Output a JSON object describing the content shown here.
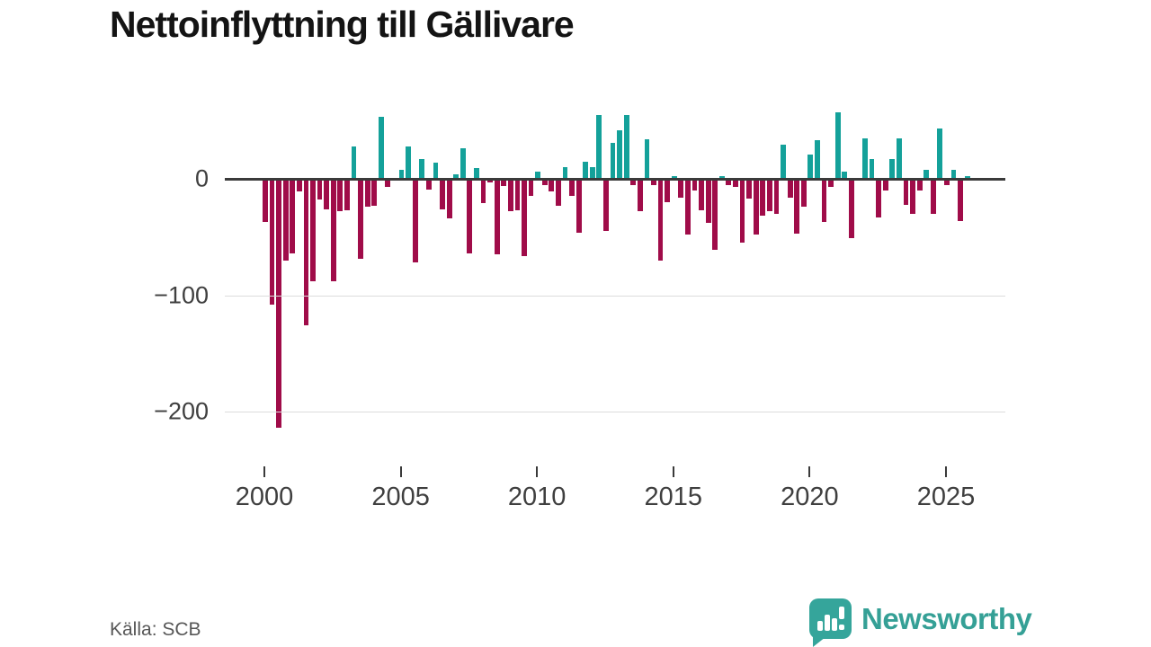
{
  "title": "Nettoinflyttning till Gällivare",
  "source": "Källa: SCB",
  "branding": {
    "logo_text": "Newsworthy"
  },
  "chart_data": {
    "type": "bar",
    "title": "Nettoinflyttning till Gällivare",
    "xlabel": "",
    "ylabel": "",
    "frequency": "quarterly",
    "period_start": "2000 Q1",
    "period_end": "2025 Q4",
    "grid": "horizontal",
    "legend": "none",
    "ylim": [
      -235,
      75
    ],
    "colors": {
      "positive": "#14a19a",
      "negative": "#a00c49"
    },
    "y_ticks": [
      {
        "label": "0",
        "value": 0
      },
      {
        "label": "−100",
        "value": -100
      },
      {
        "label": "−200",
        "value": -200
      }
    ],
    "x_ticks": [
      {
        "label": "2000",
        "year": 2000
      },
      {
        "label": "2005",
        "year": 2005
      },
      {
        "label": "2010",
        "year": 2010
      },
      {
        "label": "2015",
        "year": 2015
      },
      {
        "label": "2020",
        "year": 2020
      },
      {
        "label": "2025",
        "year": 2025
      }
    ],
    "values": [
      -37,
      -108,
      -214,
      -70,
      -64,
      -11,
      -126,
      -88,
      -18,
      -26,
      -88,
      -28,
      -27,
      28,
      -69,
      -24,
      -23,
      53,
      -7,
      0,
      8,
      28,
      -72,
      17,
      -9,
      14,
      -26,
      -34,
      4,
      26,
      -64,
      9,
      -21,
      -3,
      -65,
      -6,
      -28,
      -27,
      -66,
      -15,
      6,
      -5,
      -11,
      -23,
      10,
      -15,
      -46,
      15,
      10,
      55,
      -45,
      31,
      42,
      55,
      -5,
      -28,
      34,
      -5,
      -70,
      -20,
      2,
      -16,
      -48,
      -10,
      -27,
      -38,
      -61,
      2,
      -5,
      -7,
      -55,
      -17,
      -48,
      -32,
      -28,
      -30,
      29,
      -16,
      -47,
      -24,
      21,
      33,
      -37,
      -7,
      57,
      6,
      -51,
      0,
      35,
      17,
      -33,
      -10,
      17,
      35,
      -22,
      -30,
      -10,
      8,
      -30,
      43,
      -5,
      8,
      -36,
      2
    ]
  }
}
